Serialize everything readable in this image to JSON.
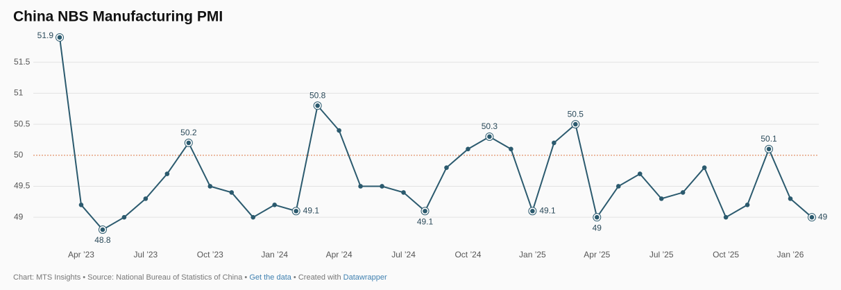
{
  "chart_data": {
    "type": "line",
    "title": "China NBS Manufacturing PMI",
    "x": [
      "2023-03",
      "2023-04",
      "2023-05",
      "2023-06",
      "2023-07",
      "2023-08",
      "2023-09",
      "2023-10",
      "2023-11",
      "2023-12",
      "2024-01",
      "2024-02",
      "2024-03",
      "2024-04",
      "2024-05",
      "2024-06",
      "2024-07",
      "2024-08",
      "2024-09",
      "2024-10",
      "2024-11",
      "2024-12",
      "2025-01",
      "2025-02",
      "2025-03",
      "2025-04",
      "2025-05",
      "2025-06",
      "2025-07",
      "2025-08",
      "2025-09",
      "2025-10",
      "2025-11",
      "2025-12",
      "2026-01",
      "2026-02"
    ],
    "series": [
      {
        "name": "PMI",
        "color": "#2b5a6e",
        "values": [
          51.9,
          49.2,
          48.8,
          49.0,
          49.3,
          49.7,
          50.2,
          49.5,
          49.4,
          49.0,
          49.2,
          49.1,
          50.8,
          50.4,
          49.5,
          49.5,
          49.4,
          49.1,
          49.8,
          50.1,
          50.3,
          50.1,
          49.1,
          50.2,
          50.5,
          49.0,
          49.5,
          49.7,
          49.3,
          49.4,
          49.8,
          49.0,
          49.2,
          50.1,
          49.3,
          49.0
        ]
      }
    ],
    "highlight": [
      0,
      2,
      6,
      11,
      12,
      17,
      20,
      22,
      24,
      25,
      33,
      35
    ],
    "ylim": [
      48.7,
      52
    ],
    "yticks": [
      49,
      49.5,
      50,
      50.5,
      51,
      51.5
    ],
    "reference_line": 50,
    "xticks": [
      {
        "value": "2023-04",
        "label": "Apr ’23"
      },
      {
        "value": "2023-07",
        "label": "Jul ’23"
      },
      {
        "value": "2023-10",
        "label": "Oct ’23"
      },
      {
        "value": "2024-01",
        "label": "Jan ’24"
      },
      {
        "value": "2024-04",
        "label": "Apr ’24"
      },
      {
        "value": "2024-07",
        "label": "Jul ’24"
      },
      {
        "value": "2024-10",
        "label": "Oct ’24"
      },
      {
        "value": "2025-01",
        "label": "Jan ’25"
      },
      {
        "value": "2025-04",
        "label": "Apr ’25"
      },
      {
        "value": "2025-07",
        "label": "Jul ’25"
      },
      {
        "value": "2025-10",
        "label": "Oct ’25"
      },
      {
        "value": "2026-01",
        "label": "Jan ’26"
      }
    ],
    "grid": true
  },
  "footer": {
    "credit": "Chart: MTS Insights",
    "source": "Source: National Bureau of Statistics of China",
    "data_link": "Get the data",
    "created": "Created with",
    "tool_link": "Datawrapper"
  }
}
